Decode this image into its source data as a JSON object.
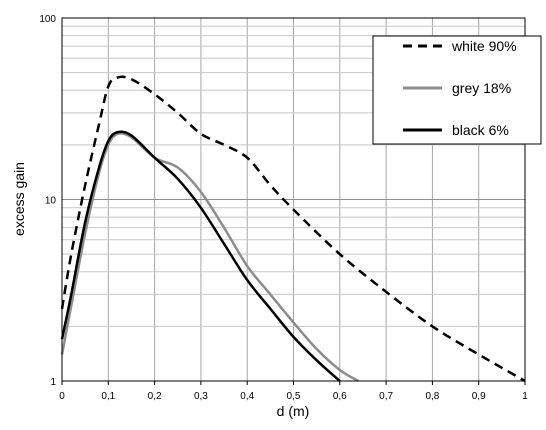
{
  "chart_data": {
    "type": "line",
    "title": "",
    "xlabel": "d (m)",
    "ylabel": "excess gain",
    "xlim": [
      0,
      1
    ],
    "ylim": [
      1,
      100
    ],
    "yscale": "log",
    "grid": true,
    "legend_position": "top-right",
    "x_ticks": [
      "0",
      "0,1",
      "0,2",
      "0,3",
      "0,4",
      "0,5",
      "0,6",
      "0,7",
      "0,8",
      "0,9",
      "1"
    ],
    "y_ticks": [
      "1",
      "10",
      "100"
    ],
    "series": [
      {
        "name": "white 90%",
        "color": "#000000",
        "style": "dashed",
        "x": [
          0,
          0.02,
          0.05,
          0.08,
          0.1,
          0.12,
          0.15,
          0.2,
          0.25,
          0.3,
          0.35,
          0.4,
          0.45,
          0.5,
          0.6,
          0.7,
          0.8,
          0.9,
          1.0
        ],
        "y": [
          2.5,
          5,
          12,
          26,
          42,
          47,
          46,
          38,
          30,
          23,
          20,
          17,
          12,
          8.8,
          5,
          3.1,
          2.0,
          1.4,
          1.0
        ]
      },
      {
        "name": "grey 18%",
        "color": "#8c8c8c",
        "style": "solid",
        "x": [
          0,
          0.02,
          0.05,
          0.08,
          0.1,
          0.12,
          0.15,
          0.2,
          0.25,
          0.3,
          0.35,
          0.4,
          0.45,
          0.5,
          0.55,
          0.6,
          0.64
        ],
        "y": [
          1.4,
          2.6,
          6.5,
          14,
          20,
          23,
          22,
          17,
          15,
          11,
          7,
          4.3,
          3.0,
          2.1,
          1.5,
          1.15,
          1.0
        ]
      },
      {
        "name": "black 6%",
        "color": "#000000",
        "style": "solid",
        "x": [
          0,
          0.02,
          0.05,
          0.08,
          0.1,
          0.12,
          0.15,
          0.2,
          0.25,
          0.3,
          0.35,
          0.4,
          0.45,
          0.5,
          0.55,
          0.6
        ],
        "y": [
          1.7,
          3.0,
          7.5,
          15,
          21,
          23.5,
          22.5,
          17,
          13,
          9,
          5.7,
          3.6,
          2.5,
          1.75,
          1.3,
          1.0
        ]
      }
    ]
  }
}
